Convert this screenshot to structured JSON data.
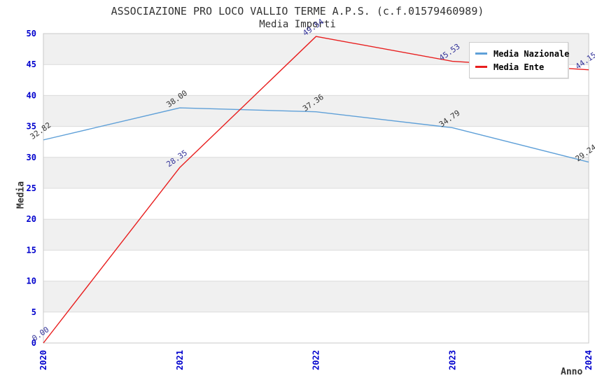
{
  "chart_data": {
    "type": "line",
    "title": "ASSOCIAZIONE PRO LOCO VALLIO TERME A.P.S. (c.f.01579460989)",
    "subtitle": "Media Importi",
    "xlabel": "Anno",
    "ylabel": "Media",
    "categories": [
      "2020",
      "2021",
      "2022",
      "2023",
      "2024"
    ],
    "series": [
      {
        "name": "Media Nazionale",
        "color": "#5fa0d8",
        "label_color": "#333333",
        "values": [
          32.82,
          38.0,
          37.36,
          34.79,
          29.24
        ],
        "labels": [
          "32.82",
          "38.00",
          "37.36",
          "34.79",
          "29.24"
        ]
      },
      {
        "name": "Media Ente",
        "color": "#e81e1e",
        "label_color": "#333399",
        "values": [
          0.0,
          28.35,
          49.54,
          45.53,
          44.15
        ],
        "labels": [
          "0.00",
          "28.35",
          "49.54",
          "45.53",
          "44.15"
        ]
      }
    ],
    "ylim": [
      0,
      50
    ],
    "ytick_step": 5,
    "yticks": [
      "0",
      "5",
      "10",
      "15",
      "20",
      "25",
      "30",
      "35",
      "40",
      "45",
      "50"
    ],
    "legend": {
      "position": "top-right"
    },
    "grid": "horizontal-banded",
    "colors": {
      "tick_label": "#0000cd",
      "band": "#f0f0f0",
      "gridline": "#dcdcdc",
      "plot_border": "#c8c8c8",
      "title_text": "#333333"
    }
  }
}
